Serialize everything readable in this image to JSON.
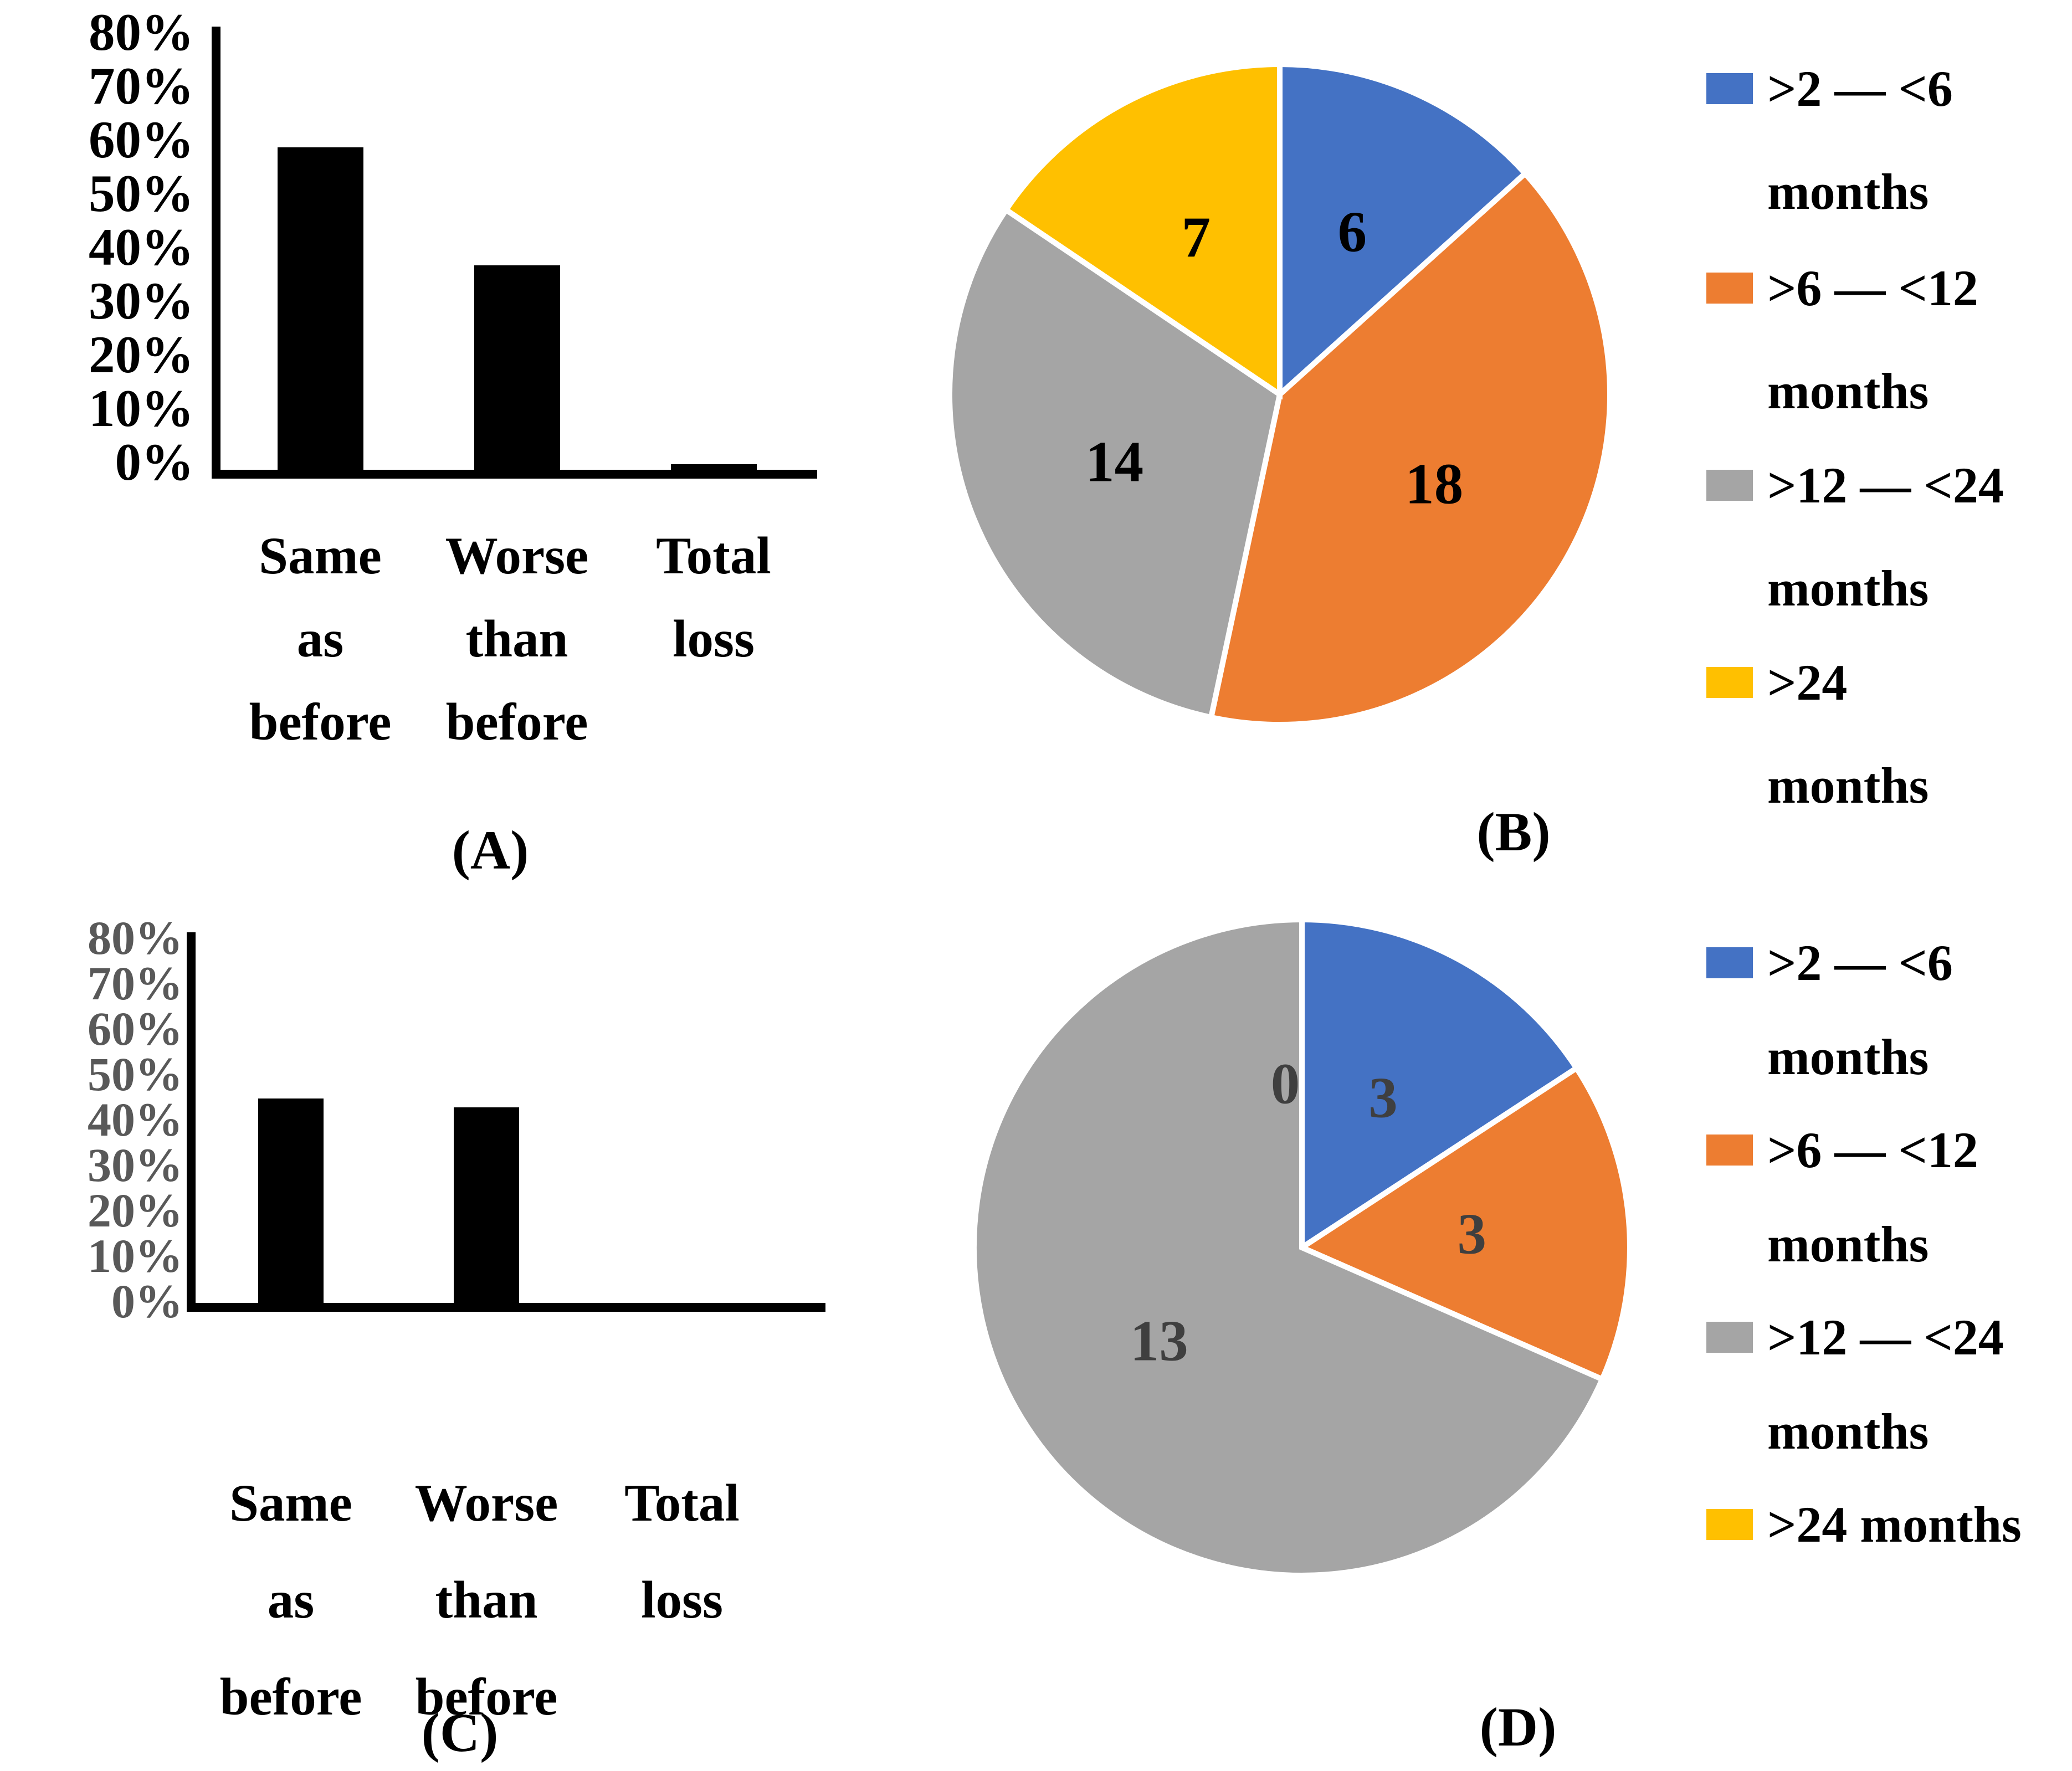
{
  "colors": {
    "blue": "#4472C4",
    "orange": "#ED7D31",
    "gray": "#A5A5A5",
    "yellow": "#FFC000",
    "bar_black": "#000000",
    "axis_black": "#000000",
    "tick_gray": "#595959",
    "pie_label_dark": "#3F3F3F",
    "slice_divider": "#FFFFFF"
  },
  "chart_data": [
    {
      "id": "A",
      "type": "bar",
      "caption": "(A)",
      "categories": [
        "Same as before",
        "Worse than before",
        "Total loss"
      ],
      "values_percent": [
        60,
        38,
        1
      ],
      "ylim": [
        0,
        80
      ],
      "yticks": [
        "80%",
        "70%",
        "60%",
        "50%",
        "40%",
        "30%",
        "20%",
        "10%",
        "0%"
      ],
      "tick_color": "#000000",
      "bar_color": "#000000",
      "grid": "off",
      "xlabel": "",
      "ylabel": ""
    },
    {
      "id": "B",
      "type": "pie",
      "caption": "(B)",
      "total": 45,
      "legend_position": "right",
      "slices": [
        {
          "label": ">2 — <6 months",
          "legend_lines": [
            ">2 — <6",
            "months"
          ],
          "value": 6,
          "color": "#4472C4",
          "label_color": "#000000"
        },
        {
          "label": ">6 — <12 months",
          "legend_lines": [
            ">6 — <12",
            "months"
          ],
          "value": 18,
          "color": "#ED7D31",
          "label_color": "#000000"
        },
        {
          "label": ">12 — <24 months",
          "legend_lines": [
            ">12 — <24",
            "months"
          ],
          "value": 14,
          "color": "#A5A5A5",
          "label_color": "#000000"
        },
        {
          "label": ">24 months",
          "legend_lines": [
            ">24",
            "months"
          ],
          "value": 7,
          "color": "#FFC000",
          "label_color": "#000000"
        }
      ]
    },
    {
      "id": "C",
      "type": "bar",
      "caption": "(C)",
      "categories": [
        "Same as before",
        "Worse than before",
        "Total loss"
      ],
      "values_percent": [
        45,
        43,
        0
      ],
      "ylim": [
        0,
        80
      ],
      "yticks": [
        "80%",
        "70%",
        "60%",
        "50%",
        "40%",
        "30%",
        "20%",
        "10%",
        "0%"
      ],
      "tick_color": "#595959",
      "bar_color": "#000000",
      "grid": "off",
      "xlabel": "",
      "ylabel": ""
    },
    {
      "id": "D",
      "type": "pie",
      "caption": "(D)",
      "total": 19,
      "legend_position": "right",
      "slices": [
        {
          "label": ">2 — <6 months",
          "legend_lines": [
            ">2 — <6",
            "months"
          ],
          "value": 3,
          "color": "#4472C4",
          "label_color": "#3F3F3F"
        },
        {
          "label": ">6 — <12 months",
          "legend_lines": [
            ">6 — <12",
            "months"
          ],
          "value": 3,
          "color": "#ED7D31",
          "label_color": "#3F3F3F"
        },
        {
          "label": ">12 — <24 months",
          "legend_lines": [
            ">12 — <24",
            "months"
          ],
          "value": 13,
          "color": "#A5A5A5",
          "label_color": "#3F3F3F"
        },
        {
          "label": ">24 months",
          "legend_lines": [
            ">24 months"
          ],
          "value": 0,
          "color": "#FFC000",
          "label_color": "#3F3F3F"
        }
      ]
    }
  ]
}
